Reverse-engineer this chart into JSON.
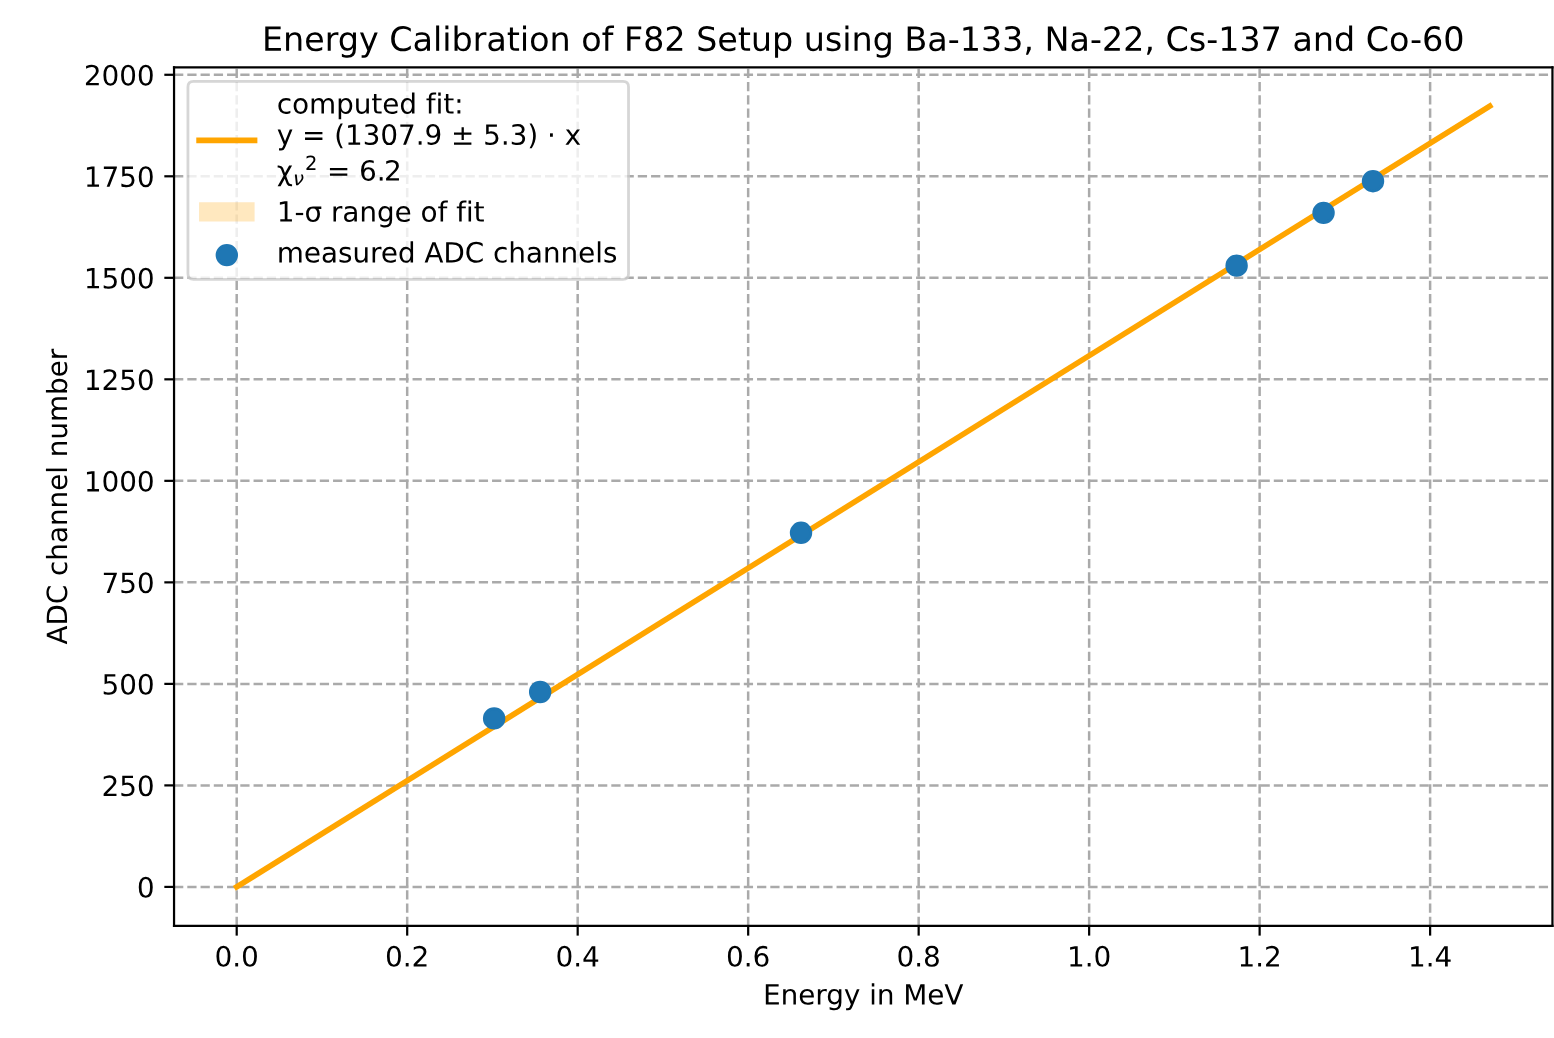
{
  "chart_data": {
    "type": "line",
    "title": "Energy Calibration of F82 Setup using Ba-133, Na-22, Cs-137 and Co-60",
    "xlabel": "Energy in MeV",
    "ylabel": "ADC channel number",
    "series": [
      {
        "name": "computed fit:\ny = (1307.9 ± 5.3) · x\nχ$_{ν}$$^{2}$ = 6.2",
        "color": "#ffa500",
        "x": [
          0,
          1.47
        ],
        "values": [
          0,
          1923
        ],
        "lower": [
          0,
          1915
        ],
        "upper": [
          0,
          1930
        ],
        "marker": "none"
      },
      {
        "name": "measured ADC channels",
        "type": "scatter",
        "color": "#1f77b4",
        "x": [
          0.302,
          0.356,
          0.662,
          1.173,
          1.275,
          1.333
        ],
        "values": [
          415,
          480,
          872,
          1530,
          1660,
          1738
        ],
        "marker": "circle"
      }
    ],
    "xlim": [
      -0.0735,
      1.5435
    ],
    "ylim": [
      -96,
      2018
    ],
    "xticks": [
      {
        "value": 0,
        "label": "0.0"
      },
      0.2,
      0.4,
      0.6,
      0.8,
      {
        "value": 1,
        "label": "1.0"
      },
      1.2,
      1.4
    ],
    "yticks": [
      0,
      250,
      500,
      750,
      1000,
      1250,
      1500,
      1750,
      2000
    ],
    "annotations": [
      "1-σ range of fit"
    ],
    "grid": true,
    "legend": "top left"
  }
}
